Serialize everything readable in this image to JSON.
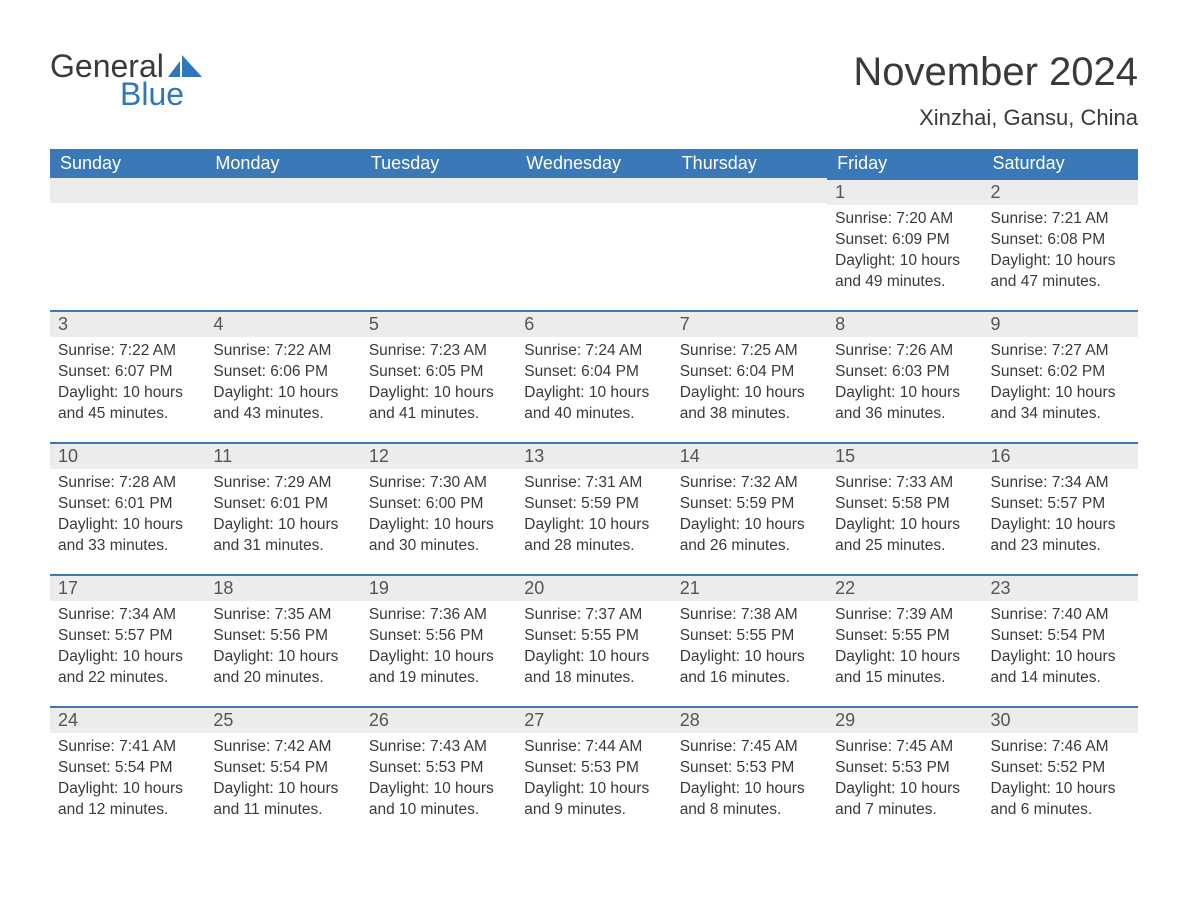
{
  "logo": {
    "word1": "General",
    "word2": "Blue"
  },
  "title": "November 2024",
  "location": "Xinzhai, Gansu, China",
  "colors": {
    "header_bg": "#3a78b7",
    "header_text": "#ffffff",
    "day_bar_bg": "#ececec",
    "rule": "#3a78b7",
    "body_text": "#3a3a3a",
    "logo_blue": "#2f77bc"
  },
  "weekdays": [
    "Sunday",
    "Monday",
    "Tuesday",
    "Wednesday",
    "Thursday",
    "Friday",
    "Saturday"
  ],
  "weeks": [
    [
      null,
      null,
      null,
      null,
      null,
      {
        "n": "1",
        "sunrise": "7:20 AM",
        "sunset": "6:09 PM",
        "daylight": "10 hours and 49 minutes."
      },
      {
        "n": "2",
        "sunrise": "7:21 AM",
        "sunset": "6:08 PM",
        "daylight": "10 hours and 47 minutes."
      }
    ],
    [
      {
        "n": "3",
        "sunrise": "7:22 AM",
        "sunset": "6:07 PM",
        "daylight": "10 hours and 45 minutes."
      },
      {
        "n": "4",
        "sunrise": "7:22 AM",
        "sunset": "6:06 PM",
        "daylight": "10 hours and 43 minutes."
      },
      {
        "n": "5",
        "sunrise": "7:23 AM",
        "sunset": "6:05 PM",
        "daylight": "10 hours and 41 minutes."
      },
      {
        "n": "6",
        "sunrise": "7:24 AM",
        "sunset": "6:04 PM",
        "daylight": "10 hours and 40 minutes."
      },
      {
        "n": "7",
        "sunrise": "7:25 AM",
        "sunset": "6:04 PM",
        "daylight": "10 hours and 38 minutes."
      },
      {
        "n": "8",
        "sunrise": "7:26 AM",
        "sunset": "6:03 PM",
        "daylight": "10 hours and 36 minutes."
      },
      {
        "n": "9",
        "sunrise": "7:27 AM",
        "sunset": "6:02 PM",
        "daylight": "10 hours and 34 minutes."
      }
    ],
    [
      {
        "n": "10",
        "sunrise": "7:28 AM",
        "sunset": "6:01 PM",
        "daylight": "10 hours and 33 minutes."
      },
      {
        "n": "11",
        "sunrise": "7:29 AM",
        "sunset": "6:01 PM",
        "daylight": "10 hours and 31 minutes."
      },
      {
        "n": "12",
        "sunrise": "7:30 AM",
        "sunset": "6:00 PM",
        "daylight": "10 hours and 30 minutes."
      },
      {
        "n": "13",
        "sunrise": "7:31 AM",
        "sunset": "5:59 PM",
        "daylight": "10 hours and 28 minutes."
      },
      {
        "n": "14",
        "sunrise": "7:32 AM",
        "sunset": "5:59 PM",
        "daylight": "10 hours and 26 minutes."
      },
      {
        "n": "15",
        "sunrise": "7:33 AM",
        "sunset": "5:58 PM",
        "daylight": "10 hours and 25 minutes."
      },
      {
        "n": "16",
        "sunrise": "7:34 AM",
        "sunset": "5:57 PM",
        "daylight": "10 hours and 23 minutes."
      }
    ],
    [
      {
        "n": "17",
        "sunrise": "7:34 AM",
        "sunset": "5:57 PM",
        "daylight": "10 hours and 22 minutes."
      },
      {
        "n": "18",
        "sunrise": "7:35 AM",
        "sunset": "5:56 PM",
        "daylight": "10 hours and 20 minutes."
      },
      {
        "n": "19",
        "sunrise": "7:36 AM",
        "sunset": "5:56 PM",
        "daylight": "10 hours and 19 minutes."
      },
      {
        "n": "20",
        "sunrise": "7:37 AM",
        "sunset": "5:55 PM",
        "daylight": "10 hours and 18 minutes."
      },
      {
        "n": "21",
        "sunrise": "7:38 AM",
        "sunset": "5:55 PM",
        "daylight": "10 hours and 16 minutes."
      },
      {
        "n": "22",
        "sunrise": "7:39 AM",
        "sunset": "5:55 PM",
        "daylight": "10 hours and 15 minutes."
      },
      {
        "n": "23",
        "sunrise": "7:40 AM",
        "sunset": "5:54 PM",
        "daylight": "10 hours and 14 minutes."
      }
    ],
    [
      {
        "n": "24",
        "sunrise": "7:41 AM",
        "sunset": "5:54 PM",
        "daylight": "10 hours and 12 minutes."
      },
      {
        "n": "25",
        "sunrise": "7:42 AM",
        "sunset": "5:54 PM",
        "daylight": "10 hours and 11 minutes."
      },
      {
        "n": "26",
        "sunrise": "7:43 AM",
        "sunset": "5:53 PM",
        "daylight": "10 hours and 10 minutes."
      },
      {
        "n": "27",
        "sunrise": "7:44 AM",
        "sunset": "5:53 PM",
        "daylight": "10 hours and 9 minutes."
      },
      {
        "n": "28",
        "sunrise": "7:45 AM",
        "sunset": "5:53 PM",
        "daylight": "10 hours and 8 minutes."
      },
      {
        "n": "29",
        "sunrise": "7:45 AM",
        "sunset": "5:53 PM",
        "daylight": "10 hours and 7 minutes."
      },
      {
        "n": "30",
        "sunrise": "7:46 AM",
        "sunset": "5:52 PM",
        "daylight": "10 hours and 6 minutes."
      }
    ]
  ],
  "labels": {
    "sunrise": "Sunrise: ",
    "sunset": "Sunset: ",
    "daylight": "Daylight: "
  }
}
